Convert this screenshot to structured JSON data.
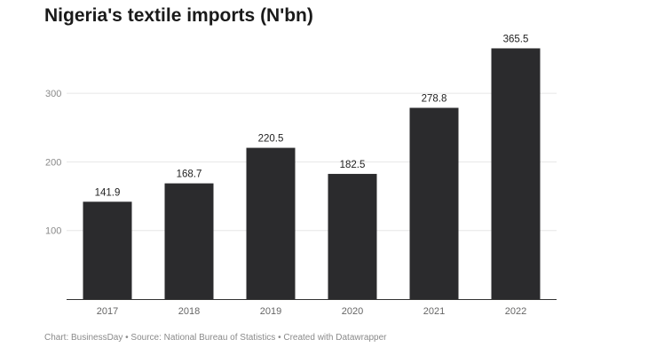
{
  "chart_data": {
    "type": "bar",
    "title": "Nigeria's textile imports (N'bn)",
    "categories": [
      "2017",
      "2018",
      "2019",
      "2020",
      "2021",
      "2022"
    ],
    "values": [
      141.9,
      168.7,
      220.5,
      182.5,
      278.8,
      365.5
    ],
    "value_labels": [
      "141.9",
      "168.7",
      "220.5",
      "182.5",
      "278.8",
      "365.5"
    ],
    "yticks": [
      100,
      200,
      300
    ],
    "ytick_labels": [
      "100",
      "200",
      "300"
    ],
    "ylim": [
      0,
      380
    ],
    "xlabel": "",
    "ylabel": "",
    "grid": true,
    "bar_color": "#2b2b2d",
    "grid_color": "#e6e6e6",
    "axis_color": "#333333"
  },
  "footer": {
    "text": "Chart: BusinessDay • Source: National Bureau of Statistics • Created with Datawrapper"
  }
}
